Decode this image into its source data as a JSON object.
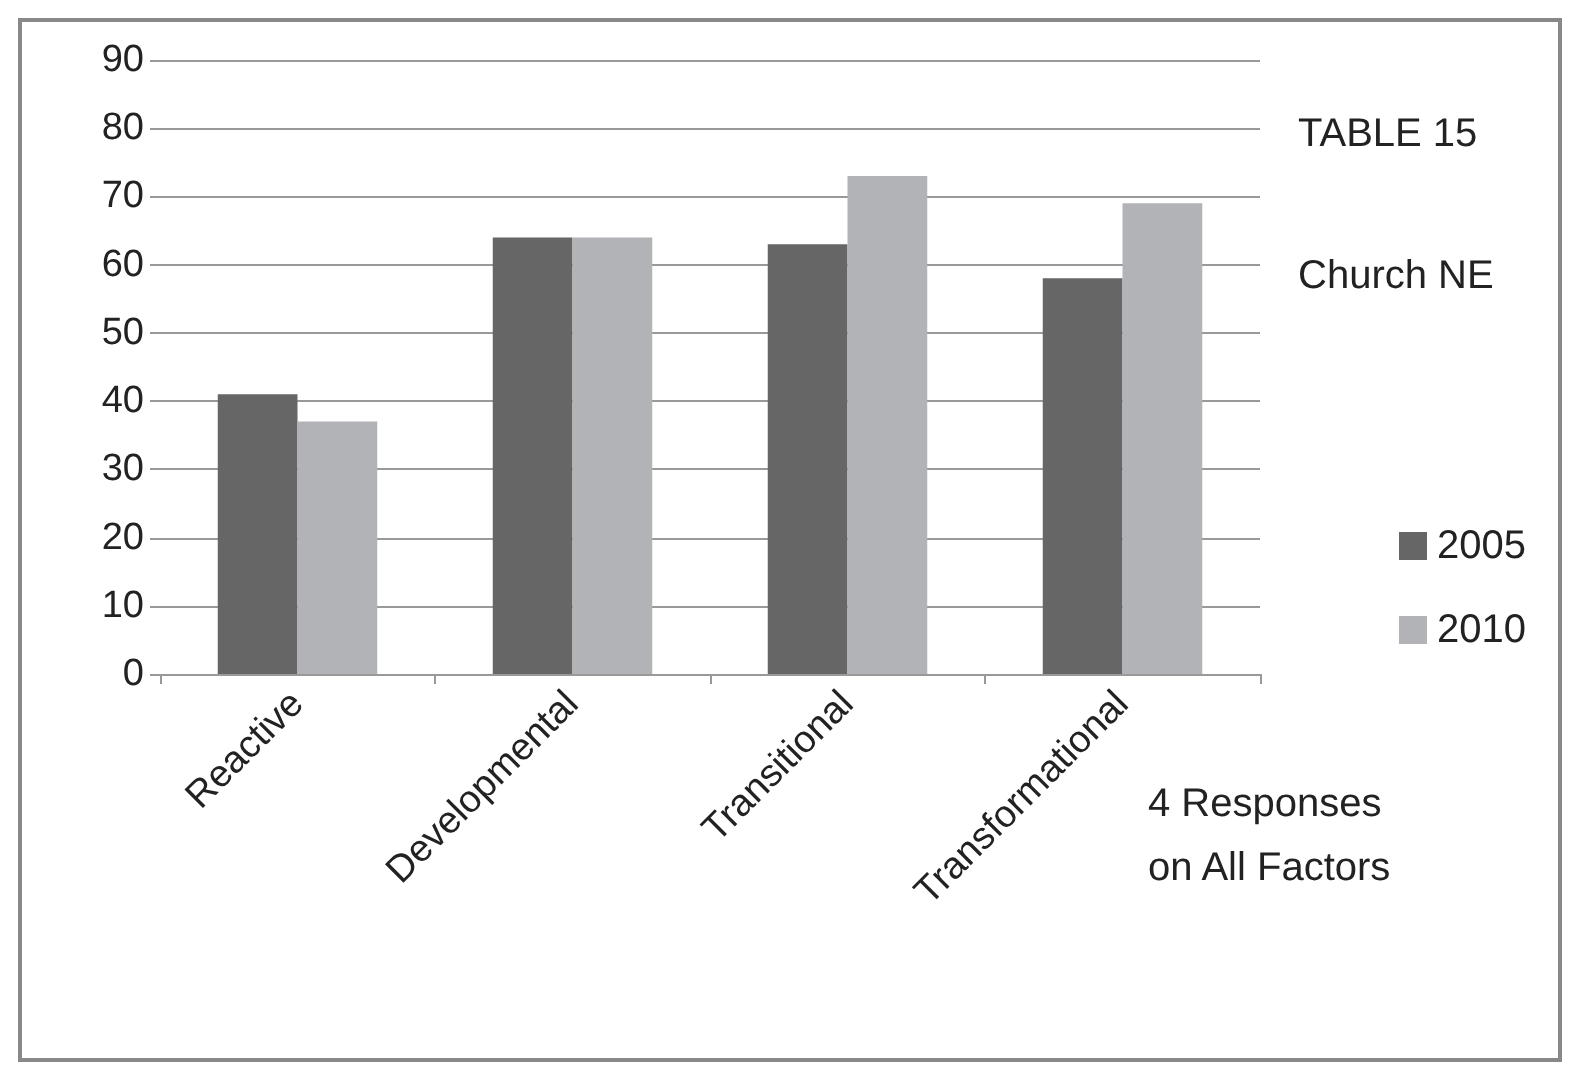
{
  "chart_data": {
    "type": "bar",
    "title": "TABLE 15",
    "subtitle": "Church NE",
    "annotations": [
      "4 Responses\non All Factors"
    ],
    "categories": [
      "Reactive",
      "Developmental",
      "Transitional",
      "Transformational"
    ],
    "series": [
      {
        "name": "2005",
        "color": "#666666",
        "values": [
          41,
          64,
          63,
          58
        ]
      },
      {
        "name": "2010",
        "color": "#b2b3b6",
        "values": [
          37,
          64,
          73,
          69
        ]
      }
    ],
    "ylim": [
      0,
      90
    ],
    "yticks": [
      0,
      10,
      20,
      30,
      40,
      50,
      60,
      70,
      80,
      90
    ],
    "grid": "y",
    "legend": "right"
  }
}
